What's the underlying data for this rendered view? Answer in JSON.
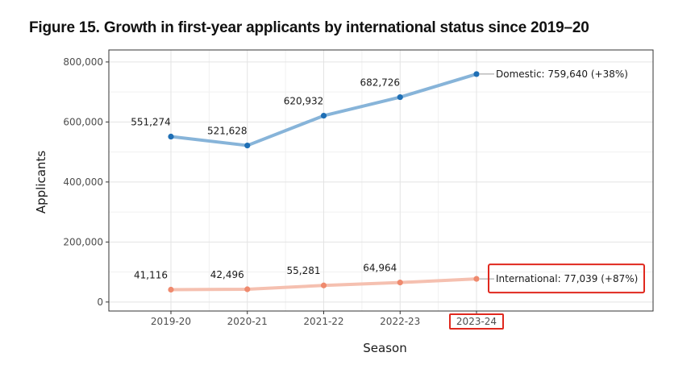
{
  "figure_title": "Figure 15. Growth in first-year applicants by international status since 2019–20",
  "chart_data": {
    "type": "line",
    "title": "Figure 15. Growth in first-year applicants by international status since 2019–20",
    "xlabel": "Season",
    "ylabel": "Applicants",
    "categories": [
      "2019-20",
      "2020-21",
      "2021-22",
      "2022-23",
      "2023-24"
    ],
    "ylim": [
      -30000,
      840000
    ],
    "yticks": [
      0,
      200000,
      400000,
      600000,
      800000
    ],
    "ytick_labels": [
      "0",
      "200,000",
      "400,000",
      "600,000",
      "800,000"
    ],
    "grid": true,
    "series": [
      {
        "name": "Domestic",
        "values": [
          551274,
          521628,
          620932,
          682726,
          759640
        ],
        "value_labels": [
          "551,274",
          "521,628",
          "620,932",
          "682,726"
        ],
        "end_label": "Domestic: 759,640 (+38%)",
        "line_color": "#87b4d9",
        "point_color": "#1f6fb5"
      },
      {
        "name": "International",
        "values": [
          41116,
          42496,
          55281,
          64964,
          77039
        ],
        "value_labels": [
          "41,116",
          "42,496",
          "55,281",
          "64,964"
        ],
        "end_label": "International: 77,039 (+87%)",
        "line_color": "#f5c0b0",
        "point_color": "#ef8a6e"
      }
    ],
    "highlight_color": "#e0281e"
  }
}
